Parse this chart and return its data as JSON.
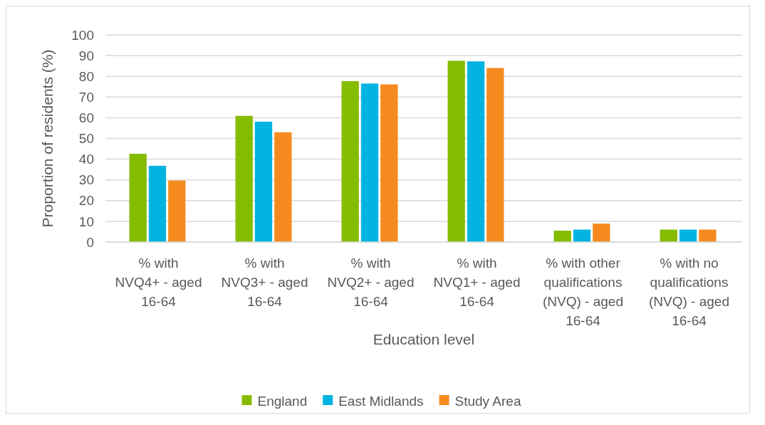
{
  "chart_data": {
    "type": "bar",
    "xlabel": "Education level",
    "ylabel": "Proportion of residents (%)",
    "categories": [
      "% with NVQ4+ - aged 16-64",
      "% with NVQ3+ - aged 16-64",
      "% with NVQ2+ - aged 16-64",
      "% with NVQ1+ - aged 16-64",
      "% with other qualifications (NVQ) - aged 16-64",
      "% with no qualifications (NVQ) - aged 16-64"
    ],
    "series": [
      {
        "name": "England",
        "color": "#86bc00",
        "values": [
          42.6,
          60.9,
          77.7,
          87.5,
          5.5,
          6.0
        ]
      },
      {
        "name": "East Midlands",
        "color": "#00b3e0",
        "values": [
          36.8,
          58.1,
          76.5,
          87.2,
          6.0,
          6.0
        ]
      },
      {
        "name": "Study Area",
        "color": "#f58b1f",
        "values": [
          29.7,
          53.0,
          76.1,
          84.0,
          8.9,
          6.0
        ]
      }
    ],
    "ylim": [
      0,
      100
    ],
    "yticks": [
      0,
      10,
      20,
      30,
      40,
      50,
      60,
      70,
      80,
      90,
      100
    ],
    "grid": "y",
    "legend": "bottom"
  }
}
